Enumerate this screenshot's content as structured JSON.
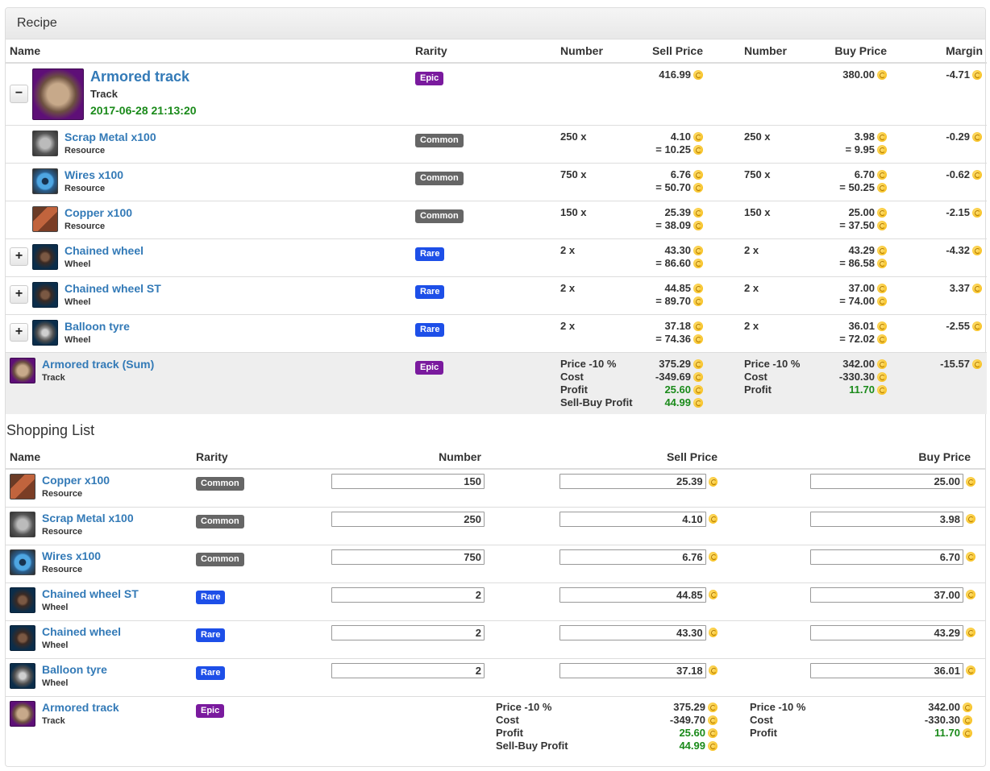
{
  "recipe": {
    "heading": "Recipe",
    "columns": {
      "name": "Name",
      "rarity": "Rarity",
      "number1": "Number",
      "sell_price": "Sell Price",
      "number2": "Number",
      "buy_price": "Buy Price",
      "margin": "Margin"
    },
    "main": {
      "toggle": "−",
      "name": "Armored track",
      "type": "Track",
      "date": "2017-06-28 21:13:20",
      "rarity": "Epic",
      "sell": "416.99",
      "buy": "380.00",
      "margin": "-4.71"
    },
    "items": [
      {
        "name": "Scrap Metal x100",
        "type": "Resource",
        "rarity": "Common",
        "toggle": "",
        "sell_num": "250 x",
        "sell_unit": "4.10",
        "sell_total": "= 10.25",
        "buy_num": "250 x",
        "buy_unit": "3.98",
        "buy_total": "= 9.95",
        "margin": "-0.29"
      },
      {
        "name": "Wires x100",
        "type": "Resource",
        "rarity": "Common",
        "toggle": "",
        "sell_num": "750 x",
        "sell_unit": "6.76",
        "sell_total": "= 50.70",
        "buy_num": "750 x",
        "buy_unit": "6.70",
        "buy_total": "= 50.25",
        "margin": "-0.62"
      },
      {
        "name": "Copper x100",
        "type": "Resource",
        "rarity": "Common",
        "toggle": "",
        "sell_num": "150 x",
        "sell_unit": "25.39",
        "sell_total": "= 38.09",
        "buy_num": "150 x",
        "buy_unit": "25.00",
        "buy_total": "= 37.50",
        "margin": "-2.15"
      },
      {
        "name": "Chained wheel",
        "type": "Wheel",
        "rarity": "Rare",
        "toggle": "+",
        "sell_num": "2 x",
        "sell_unit": "43.30",
        "sell_total": "= 86.60",
        "buy_num": "2 x",
        "buy_unit": "43.29",
        "buy_total": "= 86.58",
        "margin": "-4.32"
      },
      {
        "name": "Chained wheel ST",
        "type": "Wheel",
        "rarity": "Rare",
        "toggle": "+",
        "sell_num": "2 x",
        "sell_unit": "44.85",
        "sell_total": "= 89.70",
        "buy_num": "2 x",
        "buy_unit": "37.00",
        "buy_total": "= 74.00",
        "margin": "3.37"
      },
      {
        "name": "Balloon tyre",
        "type": "Wheel",
        "rarity": "Rare",
        "toggle": "+",
        "sell_num": "2 x",
        "sell_unit": "37.18",
        "sell_total": "= 74.36",
        "buy_num": "2 x",
        "buy_unit": "36.01",
        "buy_total": "= 72.02",
        "margin": "-2.55"
      }
    ],
    "sum": {
      "name": "Armored track (Sum)",
      "type": "Track",
      "rarity": "Epic",
      "sell_labels": [
        "Price -10 %",
        "Cost",
        "Profit",
        "Sell-Buy Profit"
      ],
      "sell_values": [
        "375.29",
        "-349.69",
        "25.60",
        "44.99"
      ],
      "buy_labels": [
        "Price -10 %",
        "Cost",
        "Profit"
      ],
      "buy_values": [
        "342.00",
        "-330.30",
        "11.70"
      ],
      "margin": "-15.57"
    }
  },
  "shopping": {
    "title": "Shopping List",
    "columns": {
      "name": "Name",
      "rarity": "Rarity",
      "number": "Number",
      "sell_price": "Sell Price",
      "buy_price": "Buy Price"
    },
    "items": [
      {
        "name": "Copper x100",
        "type": "Resource",
        "rarity": "Common",
        "number": "150",
        "sell": "25.39",
        "buy": "25.00"
      },
      {
        "name": "Scrap Metal x100",
        "type": "Resource",
        "rarity": "Common",
        "number": "250",
        "sell": "4.10",
        "buy": "3.98"
      },
      {
        "name": "Wires x100",
        "type": "Resource",
        "rarity": "Common",
        "number": "750",
        "sell": "6.76",
        "buy": "6.70"
      },
      {
        "name": "Chained wheel ST",
        "type": "Wheel",
        "rarity": "Rare",
        "number": "2",
        "sell": "44.85",
        "buy": "37.00"
      },
      {
        "name": "Chained wheel",
        "type": "Wheel",
        "rarity": "Rare",
        "number": "2",
        "sell": "43.30",
        "buy": "43.29"
      },
      {
        "name": "Balloon tyre",
        "type": "Wheel",
        "rarity": "Rare",
        "number": "2",
        "sell": "37.18",
        "buy": "36.01"
      }
    ],
    "summary": {
      "name": "Armored track",
      "type": "Track",
      "rarity": "Epic",
      "sell_labels": [
        "Price -10 %",
        "Cost",
        "Profit",
        "Sell-Buy Profit"
      ],
      "sell_values": [
        "375.29",
        "-349.70",
        "25.60",
        "44.99"
      ],
      "buy_labels": [
        "Price -10 %",
        "Cost",
        "Profit"
      ],
      "buy_values": [
        "342.00",
        "-330.30",
        "11.70"
      ]
    }
  },
  "colors": {
    "common": "#666666",
    "rare": "#1d4fe8",
    "epic": "#7a1a9e",
    "link": "#337ab7",
    "profit": "#1a8a1a",
    "coin": "#f4b400"
  }
}
